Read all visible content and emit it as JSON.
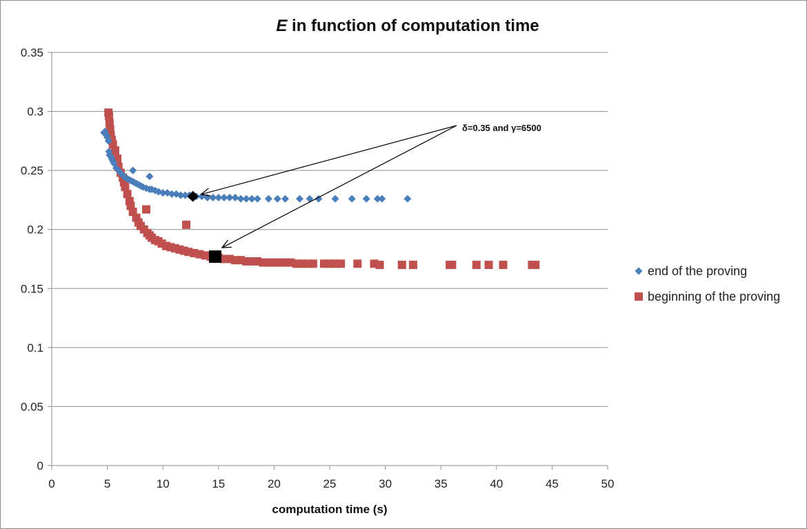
{
  "chart_data": {
    "type": "scatter",
    "title": {
      "italic": "E",
      "rest": " in function of computation time"
    },
    "xlabel": "computation time (s)",
    "ylabel": "",
    "xlim": [
      0,
      50
    ],
    "ylim": [
      0,
      0.35
    ],
    "xticks": [
      "0",
      "5",
      "10",
      "15",
      "20",
      "25",
      "30",
      "35",
      "40",
      "45",
      "50"
    ],
    "yticks": [
      "0",
      "0.05",
      "0.1",
      "0.15",
      "0.2",
      "0.25",
      "0.3",
      "0.35"
    ],
    "grid": "horizontal",
    "legend_position": "right",
    "series": [
      {
        "name": "end of the proving",
        "marker": "diamond",
        "color": "#4a7ebb",
        "x": [
          4.7,
          4.8,
          4.9,
          5.0,
          5.1,
          5.15,
          5.2,
          5.3,
          5.4,
          5.5,
          5.6,
          5.8,
          6.0,
          6.2,
          6.4,
          6.6,
          6.8,
          7.0,
          7.2,
          7.4,
          7.6,
          7.8,
          8.0,
          8.2,
          8.5,
          8.8,
          9.0,
          9.3,
          9.6,
          10.0,
          10.4,
          10.8,
          11.2,
          11.6,
          12.0,
          12.4,
          13.0,
          13.5,
          14.0,
          14.5,
          15.0,
          15.5,
          16.0,
          16.5,
          17.0,
          17.5,
          18.0,
          18.5,
          19.5,
          20.3,
          21.0,
          22.3,
          23.2,
          24.0,
          25.5,
          27.0,
          28.3,
          29.3,
          29.7,
          32.0,
          7.3,
          8.8
        ],
        "y": [
          0.282,
          0.283,
          0.28,
          0.278,
          0.275,
          0.266,
          0.263,
          0.262,
          0.26,
          0.258,
          0.256,
          0.252,
          0.25,
          0.248,
          0.246,
          0.244,
          0.243,
          0.242,
          0.241,
          0.24,
          0.239,
          0.238,
          0.237,
          0.236,
          0.235,
          0.234,
          0.234,
          0.233,
          0.232,
          0.231,
          0.231,
          0.23,
          0.23,
          0.229,
          0.229,
          0.229,
          0.228,
          0.228,
          0.227,
          0.227,
          0.227,
          0.227,
          0.227,
          0.227,
          0.226,
          0.226,
          0.226,
          0.226,
          0.226,
          0.226,
          0.226,
          0.226,
          0.226,
          0.226,
          0.226,
          0.226,
          0.226,
          0.226,
          0.226,
          0.226,
          0.25,
          0.245
        ]
      },
      {
        "name": "beginning of the proving",
        "marker": "square",
        "color": "#c0504d",
        "x": [
          5.1,
          5.15,
          5.2,
          5.25,
          5.3,
          5.4,
          5.5,
          5.7,
          5.9,
          6.0,
          6.2,
          6.5,
          6.6,
          6.8,
          7.0,
          7.1,
          7.3,
          7.6,
          7.8,
          8.0,
          8.3,
          8.6,
          8.8,
          9.0,
          9.3,
          9.6,
          9.9,
          10.3,
          10.7,
          11.1,
          11.5,
          11.9,
          12.3,
          12.8,
          13.3,
          13.8,
          14.3,
          15.0,
          15.5,
          16.0,
          16.5,
          17.0,
          17.5,
          18.0,
          18.5,
          19.0,
          19.5,
          20.0,
          20.5,
          21.0,
          21.5,
          22.0,
          22.5,
          23.0,
          23.5,
          24.5,
          25.0,
          25.5,
          26.0,
          27.5,
          29.0,
          29.5,
          31.5,
          32.5,
          35.8,
          36.0,
          38.2,
          39.3,
          40.6,
          43.2,
          43.5,
          12.1,
          8.5,
          6.4
        ],
        "y": [
          0.299,
          0.296,
          0.29,
          0.285,
          0.28,
          0.276,
          0.272,
          0.267,
          0.26,
          0.253,
          0.248,
          0.24,
          0.236,
          0.23,
          0.224,
          0.22,
          0.215,
          0.21,
          0.206,
          0.203,
          0.2,
          0.197,
          0.195,
          0.193,
          0.191,
          0.19,
          0.188,
          0.186,
          0.185,
          0.184,
          0.183,
          0.182,
          0.181,
          0.18,
          0.179,
          0.178,
          0.177,
          0.176,
          0.175,
          0.175,
          0.174,
          0.174,
          0.173,
          0.173,
          0.173,
          0.172,
          0.172,
          0.172,
          0.172,
          0.172,
          0.172,
          0.171,
          0.171,
          0.171,
          0.171,
          0.171,
          0.171,
          0.171,
          0.171,
          0.171,
          0.171,
          0.17,
          0.17,
          0.17,
          0.17,
          0.17,
          0.17,
          0.17,
          0.17,
          0.17,
          0.17,
          0.204,
          0.217,
          0.244
        ]
      }
    ],
    "highlight_points": [
      {
        "series": "end of the proving",
        "x": 12.7,
        "y": 0.228,
        "marker": "diamond",
        "color": "#000000"
      },
      {
        "series": "beginning of the proving",
        "x": 14.7,
        "y": 0.177,
        "marker": "square",
        "color": "#000000"
      }
    ],
    "annotation": {
      "text": "δ=0.35 and γ=6500"
    }
  }
}
